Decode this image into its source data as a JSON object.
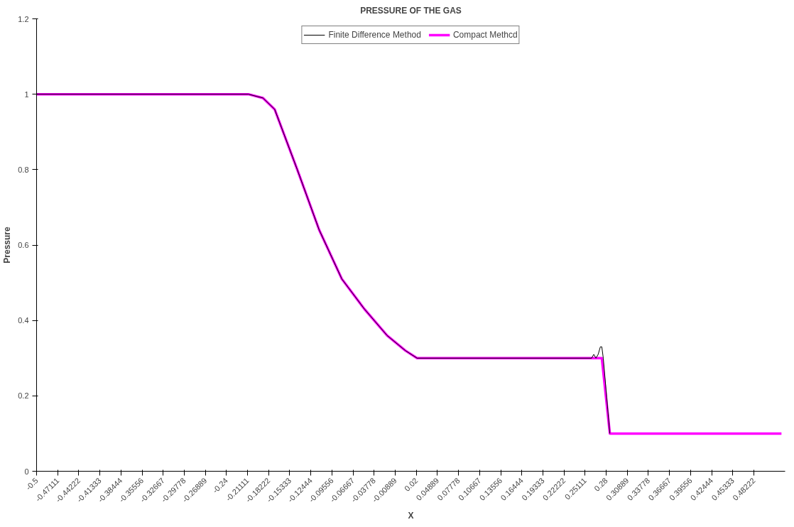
{
  "chart_data": {
    "type": "line",
    "title": "PRESSURE OF THE GAS",
    "xlabel": "X",
    "ylabel": "Pressure",
    "xlim": [
      -0.5,
      0.525
    ],
    "ylim": [
      0,
      1.2
    ],
    "yticks": [
      0,
      0.2,
      0.4,
      0.6,
      0.8,
      1,
      1.2
    ],
    "xticks": [
      -0.5,
      -0.47111,
      -0.44222,
      -0.41333,
      -0.38444,
      -0.35556,
      -0.32667,
      -0.29778,
      -0.26889,
      -0.24,
      -0.21111,
      -0.18222,
      -0.15333,
      -0.12444,
      -0.09556,
      -0.06667,
      -0.03778,
      -0.00889,
      0.02,
      0.04889,
      0.07778,
      0.10667,
      0.13556,
      0.16444,
      0.19333,
      0.22222,
      0.25111,
      0.28,
      0.30889,
      0.33778,
      0.36667,
      0.39556,
      0.42444,
      0.45333,
      0.48222
    ],
    "grid": false,
    "legend": "top",
    "marker": "none",
    "line_style": "solid",
    "series": [
      {
        "name": "Finite Difference Method",
        "color": "#000000",
        "x": [
          -0.5,
          -0.21,
          -0.19,
          -0.174,
          -0.143,
          -0.113,
          -0.082,
          -0.051,
          -0.02,
          0.005,
          0.021,
          0.26,
          0.263,
          0.266,
          0.269,
          0.272,
          0.274,
          0.276,
          0.285
        ],
        "values": [
          1,
          1,
          0.99,
          0.96,
          0.8,
          0.64,
          0.51,
          0.43,
          0.36,
          0.32,
          0.3,
          0.3,
          0.31,
          0.3,
          0.31,
          0.33,
          0.33,
          0.3,
          0.1
        ]
      },
      {
        "name": "Compact Methcd",
        "color": "#ff00ff",
        "x": [
          -0.5,
          -0.21,
          -0.19,
          -0.174,
          -0.143,
          -0.113,
          -0.082,
          -0.051,
          -0.02,
          0.005,
          0.021,
          0.274,
          0.285,
          0.3,
          0.52
        ],
        "values": [
          1,
          1,
          0.99,
          0.96,
          0.8,
          0.64,
          0.51,
          0.43,
          0.36,
          0.32,
          0.3,
          0.3,
          0.1,
          0.1,
          0.1
        ]
      }
    ]
  }
}
